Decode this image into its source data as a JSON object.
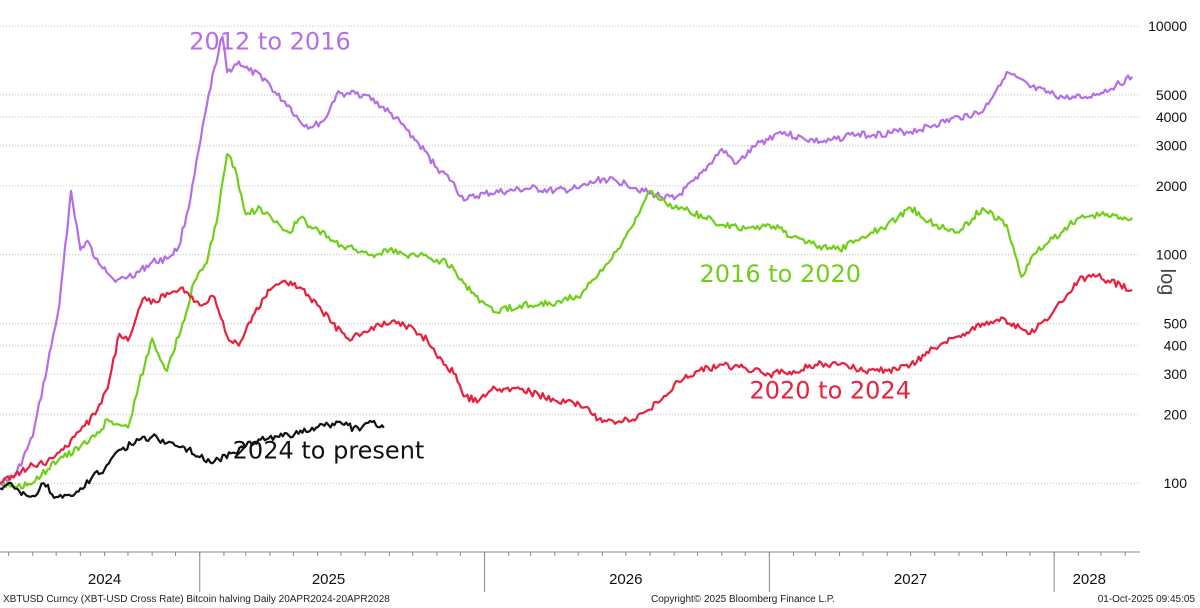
{
  "chart_data": {
    "type": "line",
    "title": "",
    "xlabel": "",
    "ylabel": "log",
    "y_scale": "log",
    "ylim": [
      50,
      12000
    ],
    "xlim": [
      "2024-04-20",
      "2028-04-20"
    ],
    "y_ticks": [
      100,
      200,
      300,
      400,
      500,
      1000,
      2000,
      3000,
      4000,
      5000,
      10000
    ],
    "y_tick_labels": [
      "100",
      "200",
      "300",
      "400",
      "500",
      "1000",
      "2000",
      "3000",
      "4000",
      "5000",
      "10000"
    ],
    "x_tick_labels": [
      {
        "label": "2024",
        "x": "2024-09-01"
      },
      {
        "label": "2025",
        "x": "2025-06-15"
      },
      {
        "label": "2026",
        "x": "2026-07-01"
      },
      {
        "label": "2027",
        "x": "2027-07-01"
      },
      {
        "label": "2028",
        "x": "2028-02-15"
      }
    ],
    "x_major_separators": [
      "2025-01-01",
      "2026-01-01",
      "2027-01-01",
      "2028-01-01"
    ],
    "grid": "horizontal",
    "legend": "none",
    "series": [
      {
        "name": "2012 to 2016",
        "color": "#b46ee6",
        "x": [
          "2024-04-20",
          "2024-05-10",
          "2024-06-01",
          "2024-06-20",
          "2024-07-05",
          "2024-07-20",
          "2024-08-01",
          "2024-08-10",
          "2024-08-20",
          "2024-09-01",
          "2024-09-15",
          "2024-10-01",
          "2024-10-15",
          "2024-11-01",
          "2024-11-20",
          "2024-12-05",
          "2024-12-20",
          "2025-01-10",
          "2025-01-20",
          "2025-01-30",
          "2025-02-05",
          "2025-02-20",
          "2025-03-05",
          "2025-03-25",
          "2025-04-10",
          "2025-04-25",
          "2025-05-10",
          "2025-05-25",
          "2025-06-10",
          "2025-06-25",
          "2025-07-10",
          "2025-08-01",
          "2025-09-01",
          "2025-10-01",
          "2025-11-01",
          "2025-11-20",
          "2025-12-01",
          "2025-12-10",
          "2026-01-01",
          "2026-02-01",
          "2026-03-01",
          "2026-04-01",
          "2026-05-01",
          "2026-06-01",
          "2026-07-01",
          "2026-08-01",
          "2026-09-01",
          "2026-10-01",
          "2026-11-01",
          "2026-11-20",
          "2026-12-15",
          "2027-01-15",
          "2027-02-15",
          "2027-03-15",
          "2027-04-15",
          "2027-05-15",
          "2027-06-15",
          "2027-07-01",
          "2027-08-01",
          "2027-09-01",
          "2027-10-01",
          "2027-11-01",
          "2027-12-01",
          "2028-01-01",
          "2028-01-20",
          "2028-02-10",
          "2028-03-01",
          "2028-03-20",
          "2028-04-10"
        ],
        "values": [
          100,
          108,
          160,
          330,
          600,
          1900,
          1050,
          1150,
          960,
          880,
          760,
          800,
          840,
          930,
          960,
          1080,
          1750,
          4500,
          6600,
          9000,
          6300,
          7000,
          6400,
          5900,
          5000,
          4500,
          3800,
          3600,
          3900,
          5000,
          5100,
          5000,
          4200,
          3300,
          2400,
          2100,
          1800,
          1750,
          1850,
          1900,
          1950,
          1900,
          1950,
          2150,
          2050,
          1850,
          1750,
          2150,
          2900,
          2500,
          3000,
          3450,
          3200,
          3100,
          3350,
          3350,
          3450,
          3450,
          3700,
          4000,
          4200,
          6300,
          5400,
          5000,
          4800,
          4900,
          5100,
          5500,
          6000
        ]
      },
      {
        "name": "2016 to 2020",
        "color": "#6fcf19",
        "x": [
          "2024-04-20",
          "2024-05-10",
          "2024-06-01",
          "2024-06-20",
          "2024-07-10",
          "2024-08-01",
          "2024-08-20",
          "2024-09-05",
          "2024-09-20",
          "2024-10-01",
          "2024-10-15",
          "2024-11-01",
          "2024-11-20",
          "2024-12-10",
          "2024-12-25",
          "2025-01-10",
          "2025-01-25",
          "2025-02-05",
          "2025-02-15",
          "2025-03-01",
          "2025-03-20",
          "2025-04-05",
          "2025-04-25",
          "2025-05-10",
          "2025-05-25",
          "2025-06-15",
          "2025-07-01",
          "2025-07-20",
          "2025-08-10",
          "2025-09-01",
          "2025-09-20",
          "2025-10-10",
          "2025-11-01",
          "2025-11-20",
          "2025-12-15",
          "2026-01-15",
          "2026-02-15",
          "2026-03-01",
          "2026-03-15",
          "2026-04-01",
          "2026-04-15",
          "2026-05-01",
          "2026-06-01",
          "2026-07-01",
          "2026-08-01",
          "2026-09-01",
          "2026-09-20",
          "2026-10-10",
          "2026-11-01",
          "2026-12-01",
          "2027-01-01",
          "2027-02-01",
          "2027-03-01",
          "2027-04-01",
          "2027-05-01",
          "2027-06-01",
          "2027-07-01",
          "2027-08-01",
          "2027-09-01",
          "2027-10-01",
          "2027-11-01",
          "2027-11-20",
          "2027-12-05",
          "2027-12-20",
          "2028-01-10",
          "2028-02-01",
          "2028-03-01",
          "2028-04-10"
        ],
        "values": [
          100,
          95,
          100,
          115,
          130,
          145,
          160,
          190,
          180,
          175,
          270,
          430,
          310,
          500,
          760,
          920,
          1550,
          2750,
          2400,
          1500,
          1600,
          1400,
          1250,
          1450,
          1300,
          1200,
          1100,
          1050,
          1000,
          1050,
          1000,
          1000,
          950,
          900,
          680,
          560,
          600,
          600,
          620,
          600,
          650,
          650,
          850,
          1200,
          1900,
          1600,
          1550,
          1450,
          1350,
          1300,
          1350,
          1200,
          1100,
          1050,
          1200,
          1350,
          1600,
          1350,
          1250,
          1600,
          1350,
          800,
          1000,
          1100,
          1250,
          1450,
          1500,
          1450
        ]
      },
      {
        "name": "2020 to 2024",
        "color": "#e8203e",
        "x": [
          "2024-04-20",
          "2024-05-10",
          "2024-06-01",
          "2024-06-20",
          "2024-07-10",
          "2024-08-01",
          "2024-08-20",
          "2024-09-05",
          "2024-09-20",
          "2024-10-01",
          "2024-10-20",
          "2024-11-05",
          "2024-11-20",
          "2024-12-10",
          "2025-01-01",
          "2025-01-20",
          "2025-02-05",
          "2025-02-20",
          "2025-03-10",
          "2025-04-01",
          "2025-04-20",
          "2025-05-10",
          "2025-06-01",
          "2025-06-20",
          "2025-07-10",
          "2025-08-01",
          "2025-08-20",
          "2025-09-10",
          "2025-10-01",
          "2025-10-20",
          "2025-11-10",
          "2025-11-25",
          "2025-12-05",
          "2025-12-25",
          "2026-01-15",
          "2026-02-05",
          "2026-03-01",
          "2026-04-01",
          "2026-04-25",
          "2026-05-10",
          "2026-06-01",
          "2026-06-20",
          "2026-07-10",
          "2026-08-01",
          "2026-09-01",
          "2026-10-01",
          "2026-11-01",
          "2026-12-01",
          "2027-01-01",
          "2027-02-01",
          "2027-03-01",
          "2027-04-01",
          "2027-05-01",
          "2027-06-01",
          "2027-07-01",
          "2027-08-01",
          "2027-09-01",
          "2027-10-01",
          "2027-10-20",
          "2027-11-10",
          "2027-12-01",
          "2027-12-20",
          "2028-01-10",
          "2028-02-01",
          "2028-02-20",
          "2028-03-10",
          "2028-04-10"
        ],
        "values": [
          100,
          110,
          120,
          125,
          140,
          170,
          200,
          260,
          450,
          420,
          640,
          620,
          680,
          720,
          600,
          650,
          440,
          400,
          540,
          700,
          770,
          720,
          600,
          500,
          430,
          460,
          490,
          500,
          480,
          420,
          330,
          300,
          240,
          230,
          260,
          260,
          250,
          230,
          225,
          215,
          185,
          185,
          190,
          210,
          270,
          310,
          330,
          320,
          300,
          310,
          330,
          330,
          310,
          310,
          330,
          390,
          440,
          500,
          520,
          500,
          450,
          520,
          620,
          770,
          820,
          770,
          700
        ]
      },
      {
        "name": "2024 to present",
        "color": "#111111",
        "x": [
          "2024-04-20",
          "2024-05-01",
          "2024-05-15",
          "2024-06-01",
          "2024-06-15",
          "2024-07-01",
          "2024-07-20",
          "2024-08-01",
          "2024-08-15",
          "2024-09-01",
          "2024-09-20",
          "2024-10-10",
          "2024-11-01",
          "2024-11-20",
          "2024-12-10",
          "2025-01-01",
          "2025-01-20",
          "2025-02-10",
          "2025-03-01",
          "2025-03-20",
          "2025-04-10",
          "2025-04-25",
          "2025-05-10",
          "2025-05-30",
          "2025-06-15",
          "2025-07-05",
          "2025-07-25",
          "2025-08-10",
          "2025-08-25"
        ],
        "values": [
          95,
          100,
          92,
          88,
          100,
          87,
          88,
          95,
          105,
          115,
          140,
          150,
          160,
          150,
          145,
          130,
          125,
          135,
          145,
          155,
          160,
          162,
          170,
          175,
          180,
          180,
          170,
          185,
          175
        ]
      }
    ],
    "annotations": [
      {
        "text": "2012 to 2016",
        "series": "2012 to 2016",
        "x": "2025-04-01",
        "y": 7900
      },
      {
        "text": "2016 to 2020",
        "series": "2016 to 2020",
        "x": "2027-01-15",
        "y": 760
      },
      {
        "text": "2020 to 2024",
        "series": "2020 to 2024",
        "x": "2027-03-20",
        "y": 235
      },
      {
        "text": "2024 to present",
        "series": "2024 to present",
        "x": "2025-06-15",
        "y": 128
      }
    ]
  },
  "footer": {
    "left": "XBTUSD Curncy (XBT-USD Cross Rate) Bitcoin halving  Daily 20APR2024-20APR2028",
    "center": "Copyright© 2025 Bloomberg Finance L.P.",
    "right": "01-Oct-2025 09:45:05"
  }
}
